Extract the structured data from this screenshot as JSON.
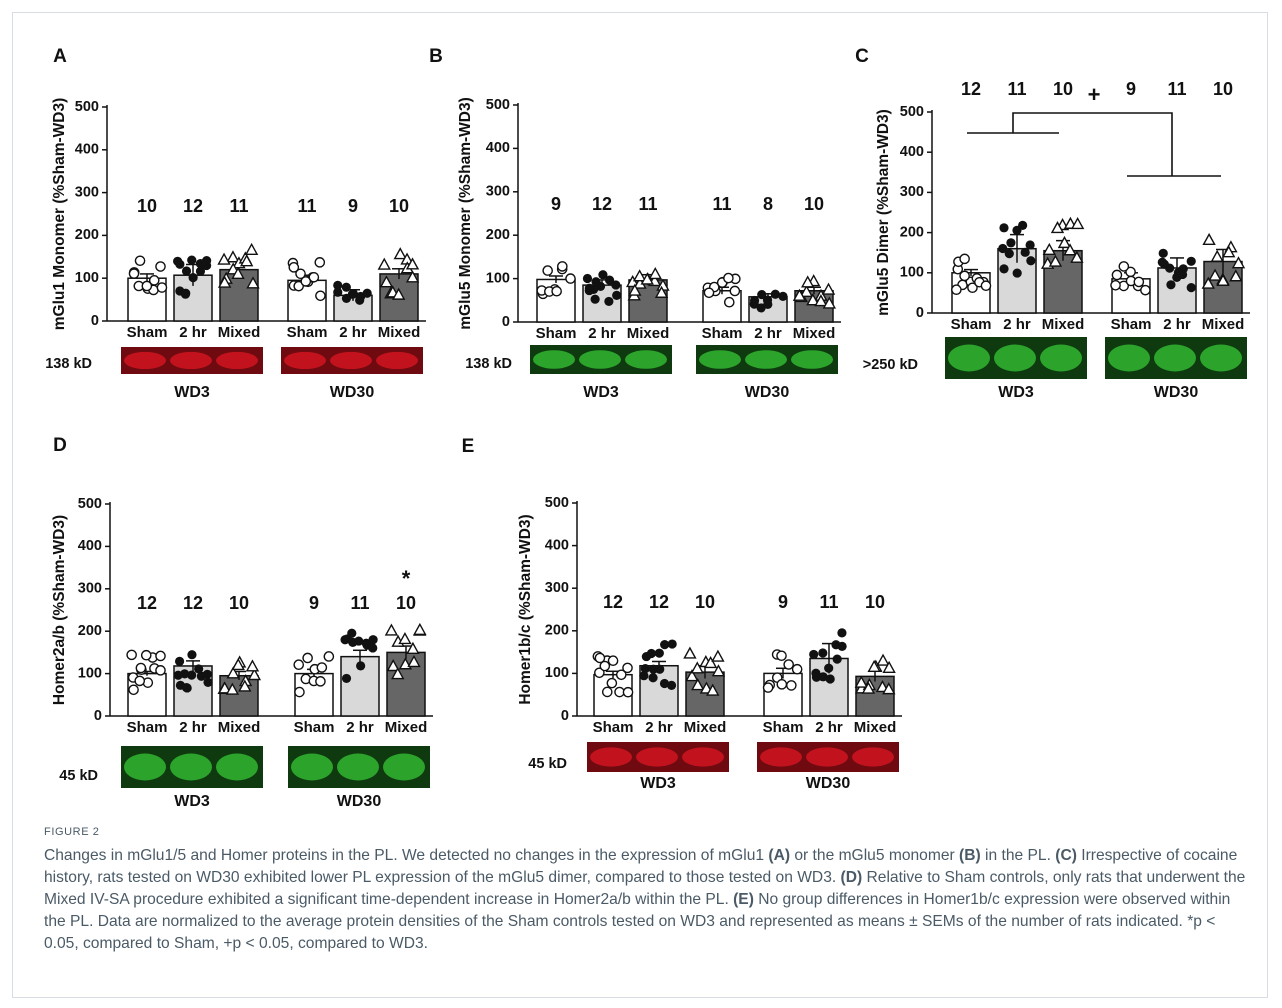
{
  "figure_label": "FIGURE 2",
  "caption": {
    "s1": "Changes in mGlu1/5 and Homer proteins in the PL. We detected no changes in the expression of mGlu1 ",
    "refA": "(A)",
    "s2": " or the mGlu5 monomer ",
    "refB": "(B)",
    "s3": " in the PL. ",
    "refC": "(C)",
    "s4": " Irrespective of cocaine history, rats tested on WD30 exhibited lower PL expression of the mGlu5 dimer, compared to those tested on WD3. ",
    "refD": "(D)",
    "s5": " Relative to Sham controls, only rats that underwent the Mixed IV-SA procedure exhibited a significant time-dependent increase in Homer2a/b within the PL. ",
    "refE": "(E)",
    "s6": " No group differences in Homer1b/c expression were observed within the PL. Data are normalized to the average protein densities of the Sham controls tested on WD3 and represented as means ± SEMs of the number of rats indicated. *p < 0.05, compared to Sham, +p < 0.05, compared to WD3."
  },
  "colors": {
    "sham": "#ffffff",
    "two_hr": "#d9d9d9",
    "mixed": "#666666",
    "red_blot": "#c8141e",
    "green_blot": "#2fae2f"
  },
  "chart_data": [
    {
      "type": "bar",
      "panel": "A",
      "ylabel": "mGlu1 Monomer (%Sham-WD3)",
      "ylim": [
        0,
        500
      ],
      "yticks": [
        0,
        100,
        200,
        300,
        400,
        500
      ],
      "categories": [
        "Sham",
        "2 hr",
        "Mixed"
      ],
      "groups": [
        {
          "name": "WD3",
          "values": [
            100,
            107,
            120
          ],
          "sem": [
            10,
            25,
            10
          ],
          "n": [
            10,
            12,
            11
          ]
        },
        {
          "name": "WD30",
          "values": [
            95,
            60,
            110
          ],
          "sem": [
            12,
            13,
            12
          ],
          "n": [
            11,
            9,
            10
          ]
        }
      ],
      "blot": {
        "label": "138 kD",
        "color": "red"
      }
    },
    {
      "type": "bar",
      "panel": "B",
      "ylabel": "mGlu5 Monomer (%Sham-WD3)",
      "ylim": [
        0,
        500
      ],
      "yticks": [
        0,
        100,
        200,
        300,
        400,
        500
      ],
      "categories": [
        "Sham",
        "2 hr",
        "Mixed"
      ],
      "groups": [
        {
          "name": "WD3",
          "values": [
            98,
            85,
            97
          ],
          "sem": [
            8,
            12,
            12
          ],
          "n": [
            9,
            12,
            11
          ]
        },
        {
          "name": "WD30",
          "values": [
            72,
            58,
            72
          ],
          "sem": [
            8,
            7,
            8
          ],
          "n": [
            11,
            8,
            10
          ]
        }
      ],
      "blot": {
        "label": "138 kD",
        "color": "green"
      }
    },
    {
      "type": "bar",
      "panel": "C",
      "ylabel": "mGlu5 Dimer (%Sham-WD3)",
      "ylim": [
        0,
        500
      ],
      "yticks": [
        0,
        100,
        200,
        300,
        400,
        500
      ],
      "categories": [
        "Sham",
        "2 hr",
        "Mixed"
      ],
      "groups": [
        {
          "name": "WD3",
          "values": [
            100,
            160,
            155
          ],
          "sem": [
            8,
            35,
            25
          ],
          "n": [
            12,
            11,
            10
          ]
        },
        {
          "name": "WD30",
          "values": [
            85,
            112,
            128
          ],
          "sem": [
            15,
            25,
            30
          ],
          "n": [
            9,
            11,
            10
          ]
        }
      ],
      "annotation": "+",
      "blot": {
        "label": ">250 kD",
        "color": "green"
      }
    },
    {
      "type": "bar",
      "panel": "D",
      "ylabel": "Homer2a/b (%Sham-WD3)",
      "ylim": [
        0,
        500
      ],
      "yticks": [
        0,
        100,
        200,
        300,
        400,
        500
      ],
      "categories": [
        "Sham",
        "2 hr",
        "Mixed"
      ],
      "groups": [
        {
          "name": "WD3",
          "values": [
            100,
            118,
            95
          ],
          "sem": [
            5,
            12,
            10
          ],
          "n": [
            12,
            12,
            10
          ]
        },
        {
          "name": "WD30",
          "values": [
            100,
            140,
            150
          ],
          "sem": [
            10,
            15,
            15
          ],
          "n": [
            9,
            11,
            10
          ]
        }
      ],
      "annotation": "*",
      "blot": {
        "label": "45 kD",
        "color": "green"
      }
    },
    {
      "type": "bar",
      "panel": "E",
      "ylabel": "Homer1b/c (%Sham-WD3)",
      "ylim": [
        0,
        500
      ],
      "yticks": [
        0,
        100,
        200,
        300,
        400,
        500
      ],
      "categories": [
        "Sham",
        "2 hr",
        "Mixed"
      ],
      "groups": [
        {
          "name": "WD3",
          "values": [
            97,
            118,
            103
          ],
          "sem": [
            8,
            10,
            15
          ],
          "n": [
            12,
            12,
            10
          ]
        },
        {
          "name": "WD30",
          "values": [
            100,
            135,
            93
          ],
          "sem": [
            12,
            35,
            12
          ],
          "n": [
            9,
            11,
            10
          ]
        }
      ],
      "blot": {
        "label": "45 kD",
        "color": "red"
      }
    }
  ]
}
